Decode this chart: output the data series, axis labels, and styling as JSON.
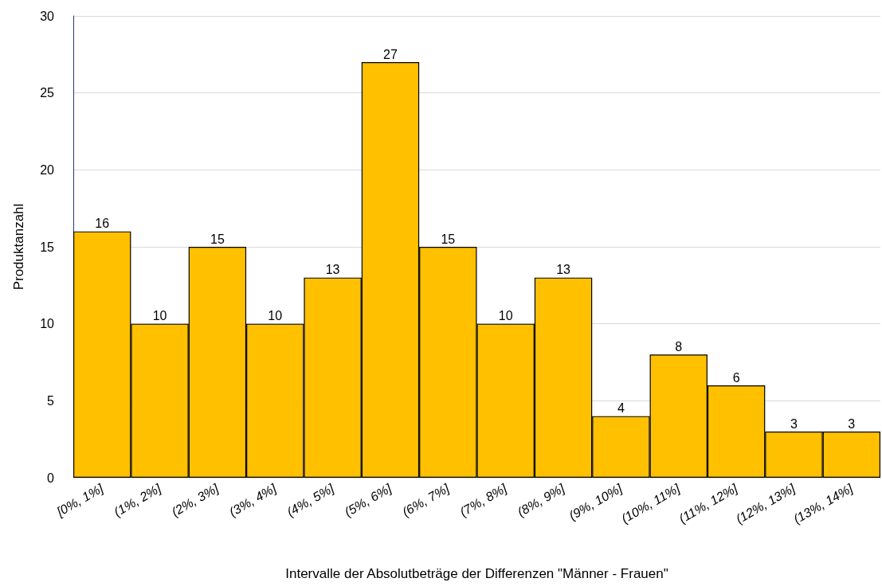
{
  "chart_data": {
    "type": "bar",
    "xlabel": "Intervalle der Absolutbeträge der Differenzen \"Männer - Frauen\"",
    "ylabel": "Produktanzahl",
    "categories": [
      "[0%, 1%]",
      "(1%, 2%]",
      "(2%, 3%]",
      "(3%, 4%]",
      "(4%, 5%]",
      "(5%, 6%]",
      "(6%, 7%]",
      "(7%, 8%]",
      "(8%, 9%]",
      "(9%, 10%]",
      "(10%, 11%]",
      "(11%, 12%]",
      "(12%, 13%]",
      "(13%, 14%]"
    ],
    "values": [
      16,
      10,
      15,
      10,
      13,
      27,
      15,
      10,
      13,
      4,
      8,
      6,
      3,
      3
    ],
    "color": "#ffc000",
    "ylim": [
      0,
      30
    ],
    "yticks": [
      0,
      5,
      10,
      15,
      20,
      25,
      30
    ],
    "grid": "y",
    "data_labels": true
  }
}
